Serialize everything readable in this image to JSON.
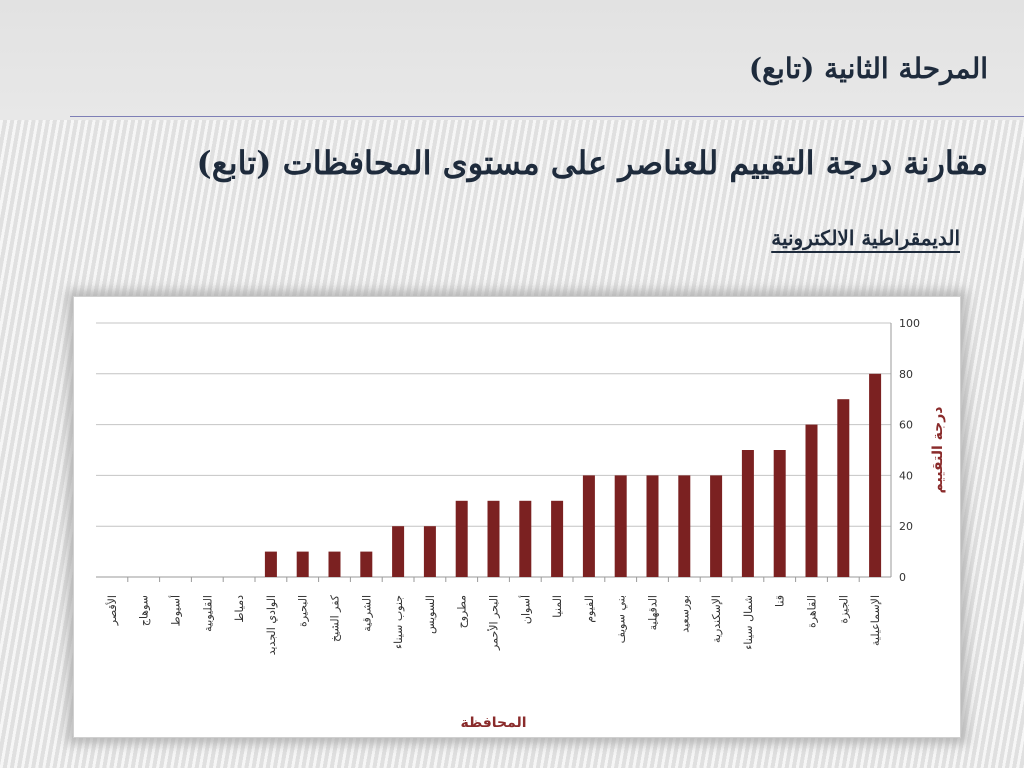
{
  "slide": {
    "heading": "المرحلة الثانية (تابع)",
    "subheading": "مقارنة درجة التقييم للعناصر على مستوى المحافظات (تابع)",
    "section_label": "الديمقراطية الالكترونية"
  },
  "chart_data": {
    "type": "bar",
    "categories": [
      "الأقصر",
      "سوهاج",
      "أسيوط",
      "القليوبية",
      "دمياط",
      "الوادي الجديد",
      "البحيرة",
      "كفر الشيخ",
      "الشرقية",
      "جنوب سيناء",
      "السويس",
      "مطروح",
      "البحر الأحمر",
      "أسوان",
      "المنيا",
      "الفيوم",
      "بني سويف",
      "الدقهلية",
      "بورسعيد",
      "الإسكندرية",
      "شمال سيناء",
      "قنا",
      "القاهرة",
      "الجيزة",
      "الإسماعيلية"
    ],
    "values": [
      0,
      0,
      0,
      0,
      0,
      10,
      10,
      10,
      10,
      20,
      20,
      30,
      30,
      30,
      30,
      40,
      40,
      40,
      40,
      40,
      50,
      50,
      60,
      70,
      80
    ],
    "xlabel": "المحافظة",
    "ylabel": "درجة التقييم",
    "ylim": [
      0,
      100
    ],
    "yticks": [
      0,
      20,
      40,
      60,
      80,
      100
    ],
    "y_axis_side": "right",
    "grid": true,
    "bar_color": "#7b2121"
  }
}
